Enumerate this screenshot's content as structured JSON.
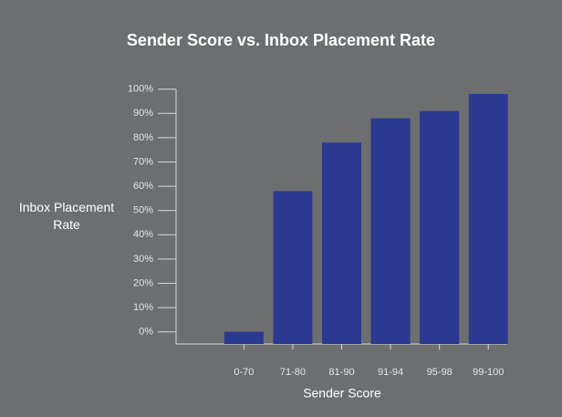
{
  "chart_data": {
    "type": "bar",
    "title": "Sender Score vs. Inbox Placement Rate",
    "x_label": "Sender Score",
    "y_label": "Inbox Placement Rate",
    "categories": [
      null,
      "0-70",
      "71-80",
      "81-90",
      "91-94",
      "95-98",
      "99-100"
    ],
    "values": [
      null,
      0,
      58,
      78,
      88,
      91,
      98
    ],
    "color": "#2b3990",
    "ylim": [
      -5,
      100
    ],
    "yticks": [
      {
        "value": 0,
        "label": "0%"
      },
      {
        "value": 10,
        "label": "10%"
      },
      {
        "value": 20,
        "label": "20%"
      },
      {
        "value": 30,
        "label": "30%"
      },
      {
        "value": 40,
        "label": "40%"
      },
      {
        "value": 50,
        "label": "50%"
      },
      {
        "value": 60,
        "label": "60%"
      },
      {
        "value": 70,
        "label": "70%"
      },
      {
        "value": 80,
        "label": "80%"
      },
      {
        "value": 90,
        "label": "90%"
      },
      {
        "value": 100,
        "label": "100%"
      }
    ]
  }
}
